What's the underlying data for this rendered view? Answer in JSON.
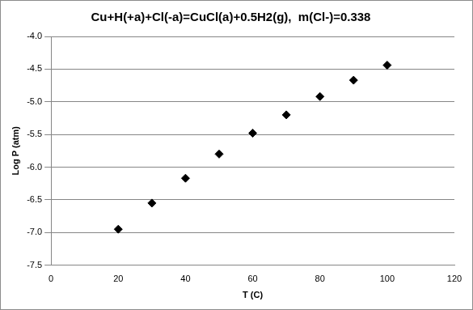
{
  "chart_data": {
    "type": "scatter",
    "title": "Cu+H(+a)+Cl(-a)=CuCl(a)+0.5H2(g),  m(Cl-)=0.338",
    "x_label": "T (C)",
    "y_label": "Log P (atm)",
    "x": [
      20,
      30,
      40,
      50,
      60,
      70,
      80,
      90,
      100
    ],
    "values": [
      -6.95,
      -6.55,
      -6.17,
      -5.8,
      -5.48,
      -5.2,
      -4.92,
      -4.67,
      -4.44
    ],
    "color": "#000000",
    "marker": "diamond",
    "xlim": [
      0,
      120
    ],
    "xticks": [
      0,
      20,
      40,
      60,
      80,
      100,
      120
    ],
    "ylim": [
      -7.5,
      -4
    ],
    "yticks": [
      -7.5,
      -7,
      -6.5,
      -6,
      -5.5,
      -5,
      -4.5,
      -4
    ],
    "grid": true
  }
}
